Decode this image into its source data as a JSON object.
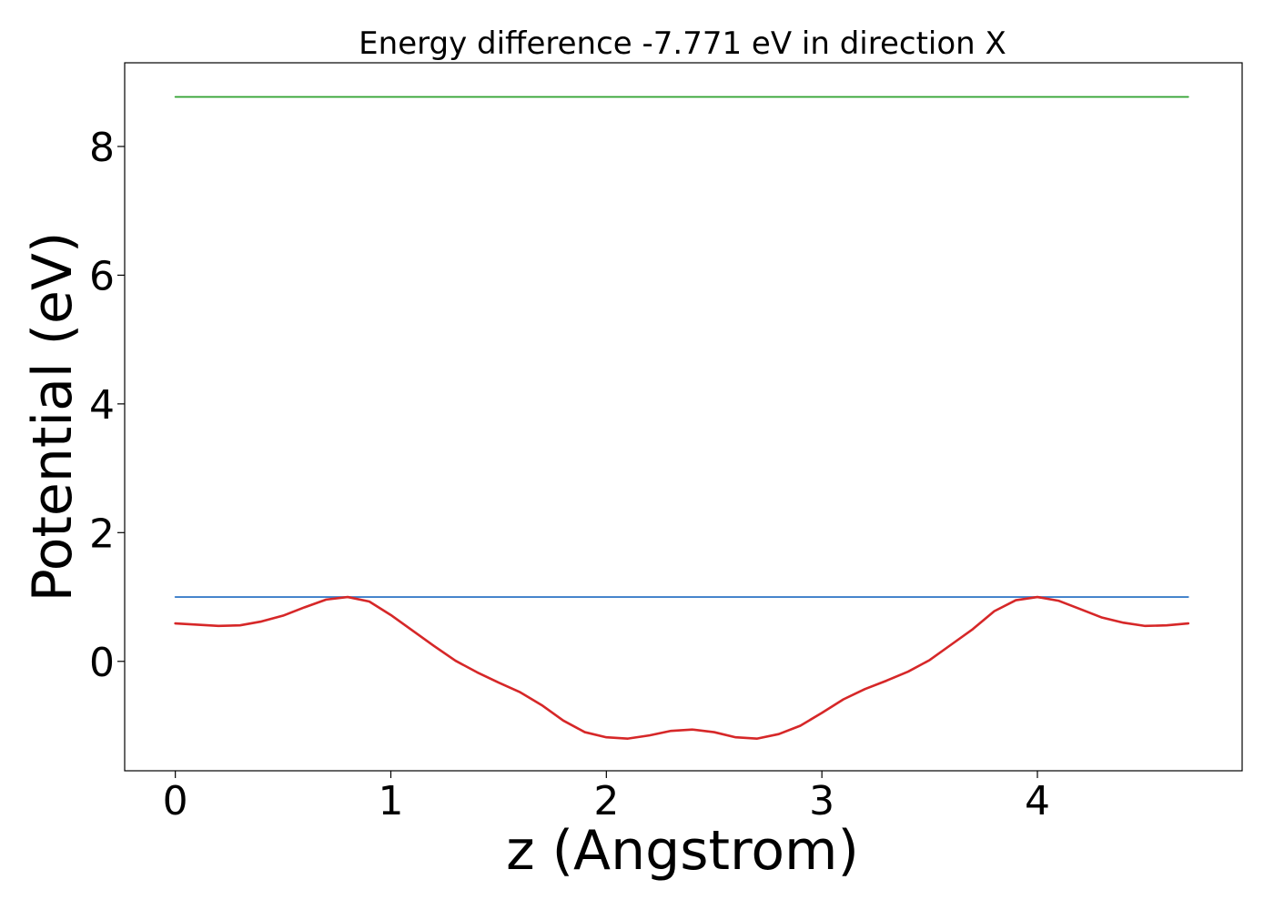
{
  "chart_data": {
    "type": "line",
    "title": "Energy difference -7.771 eV in direction X",
    "xlabel": "z (Angstrom)",
    "ylabel": "Potential (eV)",
    "xlim": [
      -0.235,
      4.95
    ],
    "ylim": [
      -1.7,
      9.3
    ],
    "xticks": [
      0,
      1,
      2,
      3,
      4
    ],
    "yticks": [
      0,
      2,
      4,
      6,
      8
    ],
    "grid": false,
    "legend": "none",
    "series": [
      {
        "color": "#2ca02c",
        "x": [
          0,
          4.7
        ],
        "y": [
          8.77,
          8.77
        ]
      },
      {
        "color": "#3a7dc9",
        "x": [
          0,
          4.7
        ],
        "y": [
          1.0,
          1.0
        ]
      },
      {
        "color": "#d62728",
        "x": [
          0,
          0.1,
          0.2,
          0.3,
          0.4,
          0.5,
          0.6,
          0.7,
          0.8,
          0.9,
          1.0,
          1.1,
          1.2,
          1.3,
          1.4,
          1.5,
          1.6,
          1.7,
          1.8,
          1.9,
          2.0,
          2.1,
          2.2,
          2.3,
          2.4,
          2.5,
          2.6,
          2.7,
          2.8,
          2.9,
          3.0,
          3.1,
          3.2,
          3.3,
          3.4,
          3.5,
          3.6,
          3.7,
          3.8,
          3.9,
          4.0,
          4.1,
          4.2,
          4.3,
          4.4,
          4.5,
          4.6,
          4.7
        ],
        "y": [
          0.59,
          0.57,
          0.55,
          0.56,
          0.62,
          0.71,
          0.84,
          0.96,
          1.0,
          0.93,
          0.72,
          0.48,
          0.24,
          0.01,
          -0.17,
          -0.33,
          -0.48,
          -0.68,
          -0.92,
          -1.1,
          -1.18,
          -1.2,
          -1.15,
          -1.08,
          -1.06,
          -1.1,
          -1.18,
          -1.2,
          -1.13,
          -1.0,
          -0.8,
          -0.59,
          -0.43,
          -0.3,
          -0.16,
          0.02,
          0.26,
          0.5,
          0.78,
          0.95,
          1.0,
          0.94,
          0.81,
          0.68,
          0.6,
          0.55,
          0.56,
          0.59
        ]
      }
    ]
  }
}
